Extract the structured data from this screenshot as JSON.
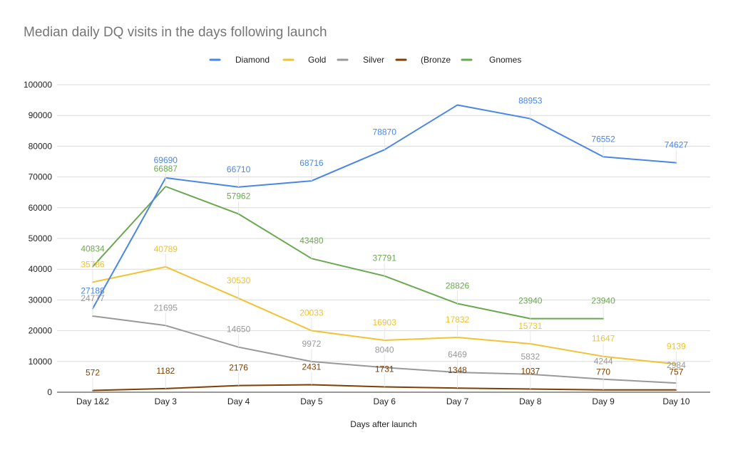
{
  "chart_data": {
    "type": "line",
    "title": "Median daily DQ visits in the days following launch",
    "xlabel": "Days after launch",
    "ylabel": "",
    "ylim": [
      0,
      100000
    ],
    "yticks": [
      0,
      10000,
      20000,
      30000,
      40000,
      50000,
      60000,
      70000,
      80000,
      90000,
      100000
    ],
    "grid": true,
    "legend_position": "top",
    "categories": [
      "Day 1&2",
      "Day 3",
      "Day 4",
      "Day 5",
      "Day 6",
      "Day 7",
      "Day 8",
      "Day 9",
      "Day 10"
    ],
    "series": [
      {
        "name": "Diamond",
        "color": "#4a86e8",
        "values": [
          27188,
          69690,
          66710,
          68716,
          78870,
          93400,
          88953,
          76552,
          74627
        ],
        "labels": [
          "27188",
          "69690",
          "66710",
          "68716",
          "78870",
          "",
          "88953",
          "76552",
          "74627"
        ]
      },
      {
        "name": "Gold",
        "color": "#f1c232",
        "values": [
          35786,
          40789,
          30530,
          20033,
          16903,
          17832,
          15731,
          11647,
          9139
        ],
        "labels": [
          "35786",
          "40789",
          "30530",
          "20033",
          "16903",
          "17832",
          "15731",
          "11647",
          "9139"
        ]
      },
      {
        "name": "Silver",
        "color": "#999999",
        "values": [
          24777,
          21695,
          14650,
          9972,
          8040,
          6469,
          5832,
          4244,
          2984
        ],
        "labels": [
          "24777",
          "21695",
          "14650",
          "9972",
          "8040",
          "6469",
          "5832",
          "4244",
          "2984"
        ]
      },
      {
        "name": "(Bronze",
        "color": "#7f3f00",
        "values": [
          572,
          1182,
          2176,
          2431,
          1731,
          1348,
          1037,
          770,
          757
        ],
        "labels": [
          "572",
          "1182",
          "2176",
          "2431",
          "1731",
          "1348",
          "1037",
          "770",
          "757"
        ]
      },
      {
        "name": "Gnomes",
        "color": "#6aa84f",
        "values": [
          40834,
          66887,
          57962,
          43480,
          37791,
          28826,
          23940,
          23940,
          null
        ],
        "labels": [
          "40834",
          "66887",
          "57962",
          "43480",
          "37791",
          "28826",
          "23940",
          "23940",
          ""
        ]
      }
    ]
  }
}
